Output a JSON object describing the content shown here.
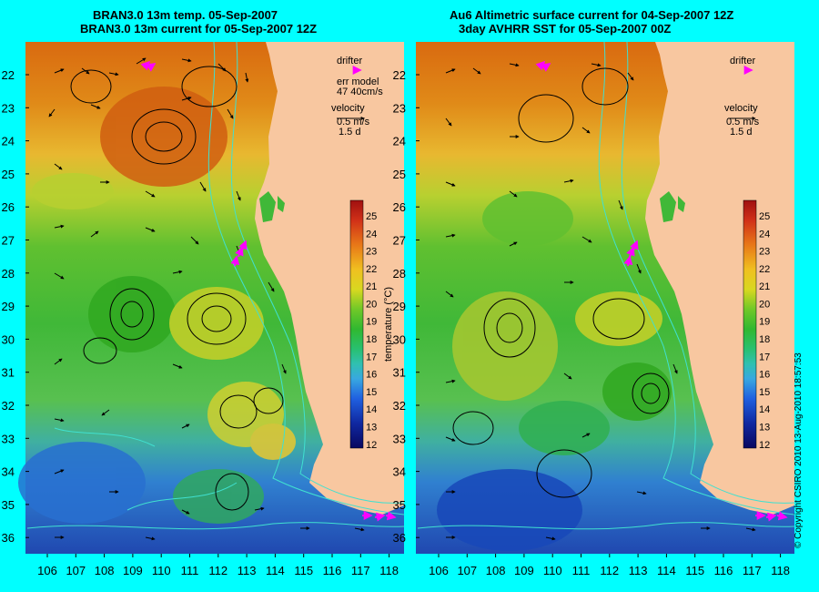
{
  "left_panel": {
    "title_line1": "BRAN3.0 13m temp. 05-Sep-2007",
    "title_line2": "BRAN3.0 13m current for 05-Sep-2007 12Z",
    "legend": {
      "drifter": "drifter",
      "err_model_line1": "err model",
      "err_model_line2": "47 40cm/s",
      "velocity": "velocity",
      "velocity_scale": "0.5 m/s",
      "velocity_time": "1.5 d"
    }
  },
  "right_panel": {
    "title_line1": "Au6 Altimetric surface current for 04-Sep-2007 12Z",
    "title_line2": "3day AVHRR SST for 05-Sep-2007 00Z",
    "legend": {
      "drifter": "drifter",
      "velocity": "velocity",
      "velocity_scale": "0.5 m/s",
      "velocity_time": "1.5 d"
    }
  },
  "axes": {
    "lon_ticks": [
      "106",
      "107",
      "108",
      "109",
      "110",
      "111",
      "112",
      "113",
      "114",
      "115",
      "116",
      "117",
      "118"
    ],
    "lat_ticks": [
      "22",
      "23",
      "24",
      "25",
      "26",
      "27",
      "28",
      "29",
      "30",
      "31",
      "32",
      "33",
      "34",
      "35",
      "36"
    ]
  },
  "colorbar": {
    "label": "temperature (°C)",
    "ticks": [
      "25",
      "24",
      "23",
      "22",
      "21",
      "20",
      "19",
      "18",
      "17",
      "16",
      "15",
      "14",
      "13",
      "12"
    ],
    "range": [
      11.5,
      25.5
    ]
  },
  "colors": {
    "background": "#00ffff",
    "land": "#f8c7a0",
    "drifter": "#ff00ff",
    "contour": "#40e0d0",
    "arrow": "#000000"
  },
  "copyright": "© Copyright CSIRO 2010   13-Aug-2010 18:57:53"
}
